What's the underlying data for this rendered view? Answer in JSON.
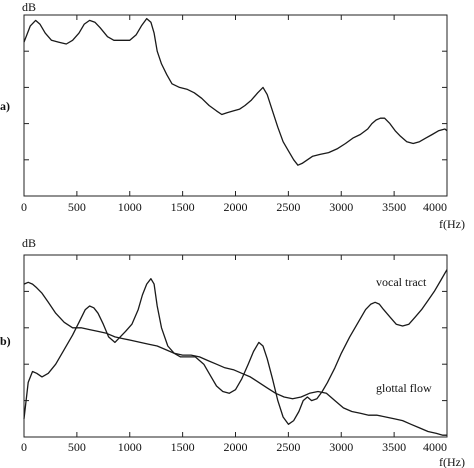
{
  "chart_data": [
    {
      "type": "line",
      "panel_label": "a)",
      "ylabel": "dB",
      "xlabel": "f(Hz)",
      "xlim": [
        0,
        4000
      ],
      "ylim": [
        0,
        100
      ],
      "xticks": [
        "0",
        "500",
        "1000",
        "1500",
        "2000",
        "2500",
        "3000",
        "3500",
        "4000"
      ],
      "yticks_count": 4,
      "grid": false,
      "series": [
        {
          "x": [
            0,
            60,
            110,
            150,
            200,
            260,
            330,
            400,
            460,
            520,
            570,
            620,
            670,
            720,
            790,
            850,
            930,
            1000,
            1060,
            1110,
            1160,
            1200,
            1230,
            1260,
            1300,
            1350,
            1400,
            1470,
            1540,
            1610,
            1680,
            1750,
            1820,
            1870,
            1920,
            1980,
            2040,
            2090,
            2150,
            2210,
            2260,
            2300,
            2350,
            2400,
            2450,
            2500,
            2550,
            2590,
            2630,
            2680,
            2730,
            2800,
            2880,
            2960,
            3040,
            3110,
            3180,
            3250,
            3290,
            3330,
            3370,
            3410,
            3460,
            3510,
            3560,
            3620,
            3680,
            3740,
            3800,
            3860,
            3920,
            3980,
            4000
          ],
          "y": [
            85,
            94,
            97,
            95,
            90,
            86,
            85,
            84,
            86,
            90,
            95,
            97,
            96,
            93,
            88,
            86,
            86,
            86,
            89,
            94,
            98,
            96,
            90,
            80,
            73,
            67,
            62,
            60,
            59,
            57,
            54,
            50,
            47,
            45,
            46,
            47,
            48,
            50,
            53,
            57,
            60,
            56,
            47,
            38,
            30,
            25,
            20,
            17,
            18,
            20,
            22,
            23,
            24,
            26,
            29,
            32,
            34,
            37,
            40,
            42,
            43,
            43,
            40,
            36,
            33,
            30,
            29,
            30,
            32,
            34,
            36,
            37,
            36
          ]
        }
      ]
    },
    {
      "type": "line",
      "panel_label": "b)",
      "ylabel": "dB",
      "xlabel": "f(Hz)",
      "xlim": [
        0,
        4000
      ],
      "ylim": [
        0,
        100
      ],
      "xticks": [
        "0",
        "500",
        "1000",
        "1500",
        "2000",
        "2500",
        "3000",
        "3500",
        "4000"
      ],
      "yticks_count": 4,
      "grid": false,
      "annotations": [
        "vocal tract",
        "glottal flow"
      ],
      "series": [
        {
          "x": [
            0,
            40,
            80,
            120,
            170,
            230,
            300,
            380,
            460,
            520,
            580,
            620,
            660,
            700,
            750,
            800,
            860,
            910,
            960,
            1020,
            1080,
            1120,
            1160,
            1200,
            1230,
            1260,
            1300,
            1360,
            1420,
            1480,
            1550,
            1620,
            1700,
            1760,
            1820,
            1880,
            1940,
            2000,
            2060,
            2120,
            2170,
            2220,
            2260,
            2300,
            2350,
            2400,
            2450,
            2500,
            2550,
            2600,
            2640,
            2680,
            2720,
            2770,
            2820,
            2870,
            2940,
            3000,
            3080,
            3160,
            3230,
            3280,
            3320,
            3360,
            3400,
            3460,
            3520,
            3580,
            3640,
            3700,
            3760,
            3820,
            3880,
            3940,
            4000
          ],
          "y": [
            10,
            30,
            36,
            35,
            33,
            35,
            40,
            48,
            56,
            63,
            70,
            72,
            71,
            68,
            62,
            55,
            52,
            55,
            58,
            62,
            70,
            78,
            84,
            87,
            84,
            72,
            60,
            50,
            46,
            44,
            44,
            44,
            40,
            34,
            28,
            25,
            24,
            26,
            32,
            40,
            47,
            52,
            50,
            43,
            32,
            20,
            11,
            7,
            9,
            14,
            20,
            22,
            20,
            21,
            25,
            30,
            38,
            46,
            55,
            63,
            70,
            73,
            74,
            73,
            70,
            66,
            62,
            61,
            62,
            66,
            70,
            75,
            80,
            86,
            92
          ]
        },
        {
          "x": [
            0,
            40,
            80,
            120,
            170,
            230,
            300,
            380,
            460,
            540,
            620,
            700,
            780,
            860,
            940,
            1020,
            1100,
            1180,
            1260,
            1340,
            1420,
            1500,
            1580,
            1660,
            1740,
            1820,
            1900,
            1980,
            2060,
            2140,
            2220,
            2300,
            2380,
            2460,
            2540,
            2620,
            2700,
            2780,
            2860,
            2940,
            3020,
            3100,
            3180,
            3260,
            3340,
            3420,
            3500,
            3580,
            3660,
            3740,
            3820,
            3900,
            3960,
            4000
          ],
          "y": [
            84,
            85,
            84,
            82,
            79,
            74,
            68,
            63,
            60,
            60,
            59,
            58,
            57,
            55,
            54,
            53,
            52,
            51,
            50,
            48,
            46,
            45,
            45,
            44,
            42,
            40,
            38,
            37,
            35,
            33,
            30,
            27,
            24,
            22,
            21,
            22,
            24,
            25,
            24,
            20,
            16,
            14,
            13,
            12,
            12,
            11,
            10,
            9,
            7,
            5,
            3,
            2,
            1,
            1
          ]
        }
      ]
    }
  ]
}
